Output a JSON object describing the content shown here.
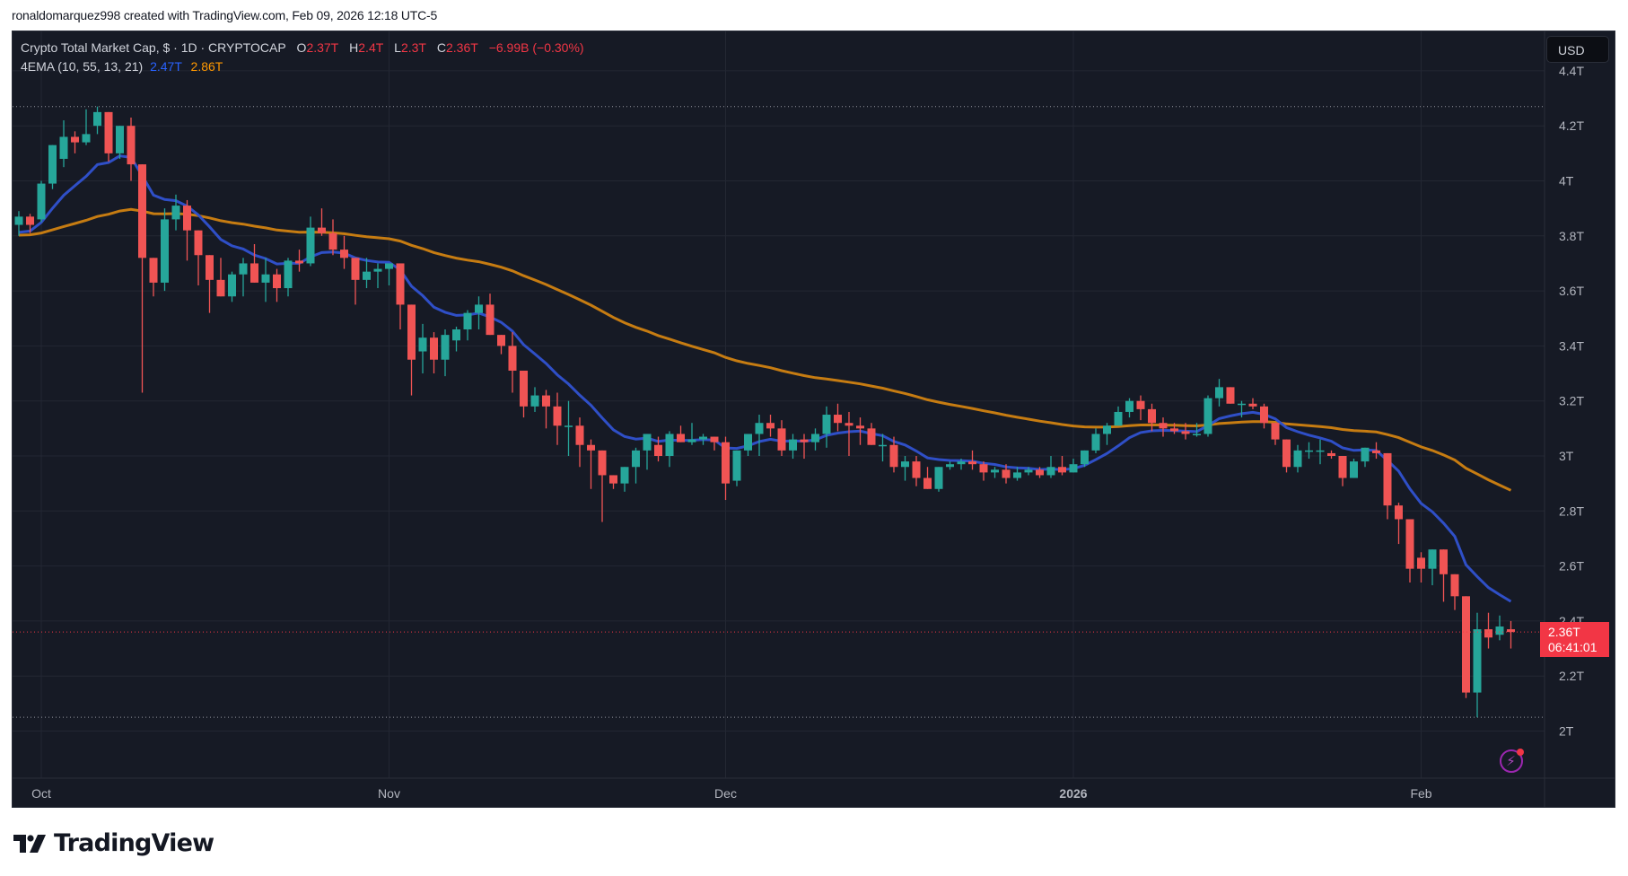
{
  "credit": "ronaldomarquez998 created with TradingView.com, Feb 09, 2026 12:18 UTC-5",
  "legend": {
    "symbol": "Crypto Total Market Cap, $ · 1D · CRYPTOCAP",
    "o_label": "O",
    "o_value": "2.37T",
    "h_label": "H",
    "h_value": "2.4T",
    "l_label": "L",
    "l_value": "2.3T",
    "c_label": "C",
    "c_value": "2.36T",
    "change": "−6.99B (−0.30%)",
    "indicator": "4EMA (10, 55, 13, 21)",
    "ema_fast_value": "2.47T",
    "ema_slow_value": "2.86T"
  },
  "currency_button": "USD",
  "last_price": {
    "price": "2.36T",
    "countdown": "06:41:01"
  },
  "brand": {
    "logo_text": "TradingView"
  },
  "colors": {
    "background": "#161a25",
    "grid": "#232733",
    "up": "#26a69a",
    "down": "#f05454",
    "ema_fast": "#2f4fc7",
    "ema_slow": "#c67c12",
    "axis_text": "#b2b5be",
    "price_tag": "#f23645"
  },
  "chart_data": {
    "type": "candlestick",
    "title": "Crypto Total Market Cap, $ · 1D · CRYPTOCAP",
    "xlabel": "",
    "ylabel": "USD",
    "y_ticks": [
      "4.4T",
      "4.2T",
      "4T",
      "3.8T",
      "3.6T",
      "3.4T",
      "3.2T",
      "3T",
      "2.8T",
      "2.6T",
      "2.4T",
      "2.2T",
      "2T"
    ],
    "y_tick_values": [
      4.4,
      4.2,
      4.0,
      3.8,
      3.6,
      3.4,
      3.2,
      3.0,
      2.8,
      2.6,
      2.4,
      2.2,
      2.0
    ],
    "x_ticks": [
      {
        "label": "Oct",
        "index": 2,
        "bold": false
      },
      {
        "label": "Nov",
        "index": 33,
        "bold": false
      },
      {
        "label": "Dec",
        "index": 63,
        "bold": false
      },
      {
        "label": "2026",
        "index": 94,
        "bold": true
      },
      {
        "label": "Feb",
        "index": 125,
        "bold": false
      }
    ],
    "ylim": [
      1.85,
      4.45
    ],
    "high_marker": 4.27,
    "low_marker": 2.05,
    "last_close": 2.36,
    "start_date": "2025-09-29",
    "unit": "T USD",
    "ohlc": [
      [
        3.84,
        3.89,
        3.8,
        3.87
      ],
      [
        3.87,
        3.88,
        3.81,
        3.84
      ],
      [
        3.86,
        4.0,
        3.85,
        3.99
      ],
      [
        3.99,
        4.1,
        3.97,
        4.13
      ],
      [
        4.08,
        4.22,
        4.05,
        4.16
      ],
      [
        4.16,
        4.18,
        4.1,
        4.14
      ],
      [
        4.14,
        4.26,
        4.13,
        4.17
      ],
      [
        4.2,
        4.27,
        4.17,
        4.25
      ],
      [
        4.25,
        4.23,
        4.07,
        4.1
      ],
      [
        4.1,
        4.2,
        4.08,
        4.2
      ],
      [
        4.2,
        4.23,
        4.0,
        4.06
      ],
      [
        4.06,
        4.01,
        3.23,
        3.72
      ],
      [
        3.72,
        3.64,
        3.58,
        3.63
      ],
      [
        3.63,
        3.9,
        3.6,
        3.86
      ],
      [
        3.86,
        3.95,
        3.82,
        3.91
      ],
      [
        3.91,
        3.93,
        3.71,
        3.82
      ],
      [
        3.82,
        3.82,
        3.62,
        3.73
      ],
      [
        3.73,
        3.7,
        3.52,
        3.64
      ],
      [
        3.64,
        3.72,
        3.58,
        3.58
      ],
      [
        3.58,
        3.67,
        3.56,
        3.66
      ],
      [
        3.66,
        3.72,
        3.58,
        3.7
      ],
      [
        3.7,
        3.77,
        3.66,
        3.63
      ],
      [
        3.63,
        3.72,
        3.56,
        3.66
      ],
      [
        3.66,
        3.68,
        3.56,
        3.61
      ],
      [
        3.61,
        3.72,
        3.58,
        3.71
      ],
      [
        3.71,
        3.75,
        3.67,
        3.7
      ],
      [
        3.7,
        3.87,
        3.69,
        3.83
      ],
      [
        3.83,
        3.9,
        3.8,
        3.81
      ],
      [
        3.81,
        3.86,
        3.73,
        3.75
      ],
      [
        3.75,
        3.8,
        3.68,
        3.72
      ],
      [
        3.72,
        3.71,
        3.55,
        3.64
      ],
      [
        3.64,
        3.72,
        3.61,
        3.67
      ],
      [
        3.67,
        3.7,
        3.61,
        3.68
      ],
      [
        3.68,
        3.7,
        3.62,
        3.7
      ],
      [
        3.7,
        3.7,
        3.46,
        3.55
      ],
      [
        3.55,
        3.5,
        3.22,
        3.35
      ],
      [
        3.38,
        3.48,
        3.3,
        3.43
      ],
      [
        3.43,
        3.45,
        3.3,
        3.35
      ],
      [
        3.35,
        3.46,
        3.29,
        3.44
      ],
      [
        3.42,
        3.47,
        3.38,
        3.46
      ],
      [
        3.46,
        3.53,
        3.42,
        3.52
      ],
      [
        3.52,
        3.58,
        3.46,
        3.55
      ],
      [
        3.55,
        3.59,
        3.48,
        3.44
      ],
      [
        3.44,
        3.42,
        3.37,
        3.4
      ],
      [
        3.4,
        3.45,
        3.23,
        3.31
      ],
      [
        3.31,
        3.3,
        3.14,
        3.18
      ],
      [
        3.18,
        3.25,
        3.16,
        3.22
      ],
      [
        3.22,
        3.24,
        3.1,
        3.18
      ],
      [
        3.18,
        3.23,
        3.04,
        3.11
      ],
      [
        3.11,
        3.2,
        3.0,
        3.11
      ],
      [
        3.11,
        3.14,
        2.96,
        3.04
      ],
      [
        3.04,
        3.06,
        2.88,
        3.02
      ],
      [
        3.02,
        3.0,
        2.76,
        2.93
      ],
      [
        2.93,
        2.92,
        2.88,
        2.9
      ],
      [
        2.9,
        2.93,
        2.87,
        2.96
      ],
      [
        2.96,
        3.03,
        2.9,
        3.02
      ],
      [
        3.02,
        3.07,
        2.95,
        3.08
      ],
      [
        3.04,
        3.07,
        2.98,
        3.0
      ],
      [
        3.0,
        3.09,
        2.96,
        3.08
      ],
      [
        3.08,
        3.11,
        3.05,
        3.05
      ],
      [
        3.05,
        3.12,
        3.04,
        3.06
      ],
      [
        3.06,
        3.08,
        3.04,
        3.07
      ],
      [
        3.07,
        3.07,
        3.02,
        3.05
      ],
      [
        3.05,
        3.07,
        2.84,
        2.9
      ],
      [
        2.91,
        3.02,
        2.89,
        3.02
      ],
      [
        3.02,
        3.08,
        3.0,
        3.08
      ],
      [
        3.08,
        3.15,
        3.0,
        3.12
      ],
      [
        3.12,
        3.15,
        3.07,
        3.1
      ],
      [
        3.1,
        3.13,
        3.0,
        3.02
      ],
      [
        3.02,
        3.08,
        2.99,
        3.06
      ],
      [
        3.06,
        3.08,
        2.99,
        3.05
      ],
      [
        3.05,
        3.1,
        3.02,
        3.08
      ],
      [
        3.08,
        3.18,
        3.03,
        3.15
      ],
      [
        3.15,
        3.19,
        3.09,
        3.12
      ],
      [
        3.12,
        3.16,
        3.0,
        3.11
      ],
      [
        3.11,
        3.14,
        3.04,
        3.1
      ],
      [
        3.1,
        3.12,
        3.05,
        3.04
      ],
      [
        3.04,
        3.08,
        2.98,
        3.04
      ],
      [
        3.04,
        3.07,
        2.94,
        2.96
      ],
      [
        2.96,
        3.0,
        2.91,
        2.98
      ],
      [
        2.98,
        3.0,
        2.89,
        2.92
      ],
      [
        2.92,
        2.96,
        2.88,
        2.88
      ],
      [
        2.88,
        2.96,
        2.87,
        2.96
      ],
      [
        2.96,
        2.98,
        2.95,
        2.97
      ],
      [
        2.97,
        2.99,
        2.95,
        2.98
      ],
      [
        2.98,
        3.02,
        2.95,
        2.97
      ],
      [
        2.97,
        2.98,
        2.91,
        2.94
      ],
      [
        2.94,
        2.96,
        2.92,
        2.95
      ],
      [
        2.95,
        2.97,
        2.9,
        2.92
      ],
      [
        2.92,
        2.96,
        2.91,
        2.94
      ],
      [
        2.94,
        2.96,
        2.93,
        2.95
      ],
      [
        2.95,
        2.96,
        2.92,
        2.93
      ],
      [
        2.93,
        3.0,
        2.92,
        2.96
      ],
      [
        2.96,
        3.0,
        2.93,
        2.94
      ],
      [
        2.94,
        2.99,
        2.94,
        2.97
      ],
      [
        2.97,
        3.02,
        2.96,
        3.02
      ],
      [
        3.02,
        3.1,
        3.01,
        3.08
      ],
      [
        3.08,
        3.12,
        3.04,
        3.11
      ],
      [
        3.11,
        3.18,
        3.11,
        3.16
      ],
      [
        3.16,
        3.21,
        3.14,
        3.2
      ],
      [
        3.2,
        3.22,
        3.13,
        3.17
      ],
      [
        3.17,
        3.19,
        3.09,
        3.12
      ],
      [
        3.12,
        3.14,
        3.07,
        3.1
      ],
      [
        3.1,
        3.12,
        3.08,
        3.09
      ],
      [
        3.09,
        3.12,
        3.06,
        3.08
      ],
      [
        3.08,
        3.12,
        3.07,
        3.08
      ],
      [
        3.08,
        3.22,
        3.07,
        3.21
      ],
      [
        3.21,
        3.28,
        3.18,
        3.25
      ],
      [
        3.25,
        3.25,
        3.2,
        3.19
      ],
      [
        3.19,
        3.2,
        3.14,
        3.19
      ],
      [
        3.19,
        3.21,
        3.17,
        3.18
      ],
      [
        3.18,
        3.19,
        3.1,
        3.12
      ],
      [
        3.12,
        3.12,
        3.04,
        3.06
      ],
      [
        3.06,
        3.05,
        2.94,
        2.96
      ],
      [
        2.96,
        3.04,
        2.94,
        3.02
      ],
      [
        3.02,
        3.05,
        2.99,
        3.02
      ],
      [
        3.02,
        3.06,
        2.97,
        3.02
      ],
      [
        3.01,
        3.02,
        2.99,
        3.0
      ],
      [
        3.0,
        2.99,
        2.89,
        2.92
      ],
      [
        2.92,
        2.99,
        2.92,
        2.98
      ],
      [
        2.98,
        3.03,
        2.96,
        3.03
      ],
      [
        3.02,
        3.05,
        2.99,
        3.01
      ],
      [
        3.01,
        3.0,
        2.77,
        2.82
      ],
      [
        2.82,
        2.83,
        2.68,
        2.77
      ],
      [
        2.77,
        2.77,
        2.54,
        2.59
      ],
      [
        2.63,
        2.65,
        2.54,
        2.59
      ],
      [
        2.59,
        2.66,
        2.53,
        2.66
      ],
      [
        2.66,
        2.65,
        2.47,
        2.57
      ],
      [
        2.57,
        2.54,
        2.44,
        2.49
      ],
      [
        2.49,
        2.46,
        2.12,
        2.14
      ],
      [
        2.14,
        2.43,
        2.05,
        2.37
      ],
      [
        2.37,
        2.43,
        2.3,
        2.34
      ],
      [
        2.35,
        2.42,
        2.33,
        2.38
      ],
      [
        2.37,
        2.4,
        2.3,
        2.36
      ]
    ],
    "series": [
      {
        "name": "EMA fast (blue)",
        "color": "#2f4fc7",
        "last": 2.47
      },
      {
        "name": "EMA slow (orange)",
        "color": "#c67c12",
        "last": 2.86
      }
    ]
  }
}
